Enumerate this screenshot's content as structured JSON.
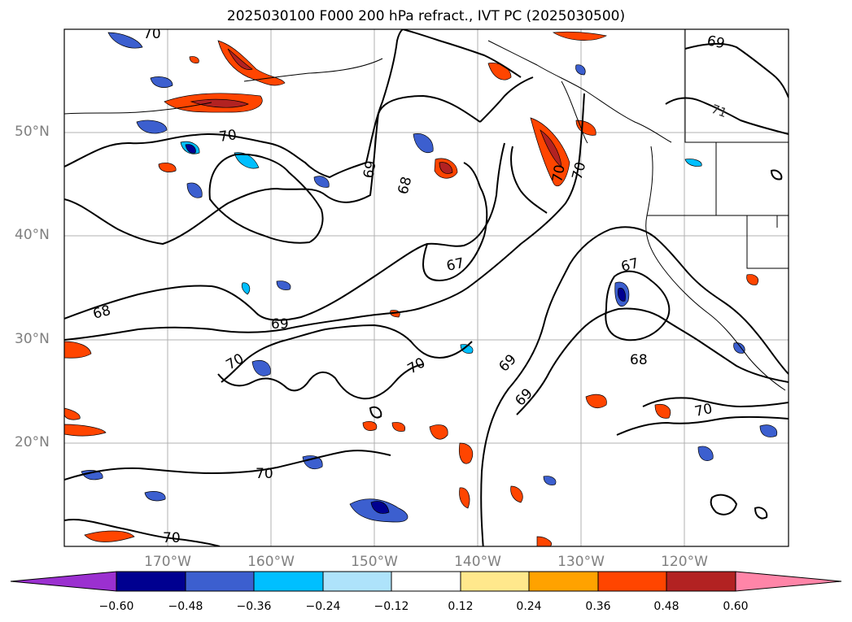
{
  "title": "2025030100 F000 200 hPa refract., IVT PC (2025030500)",
  "map": {
    "projection": "lat-lon",
    "lon_range": [
      -180,
      -110
    ],
    "lat_range": [
      10,
      60
    ],
    "grid": true,
    "lat_tick_labels": [
      "50°N",
      "40°N",
      "30°N",
      "20°N"
    ],
    "lon_tick_labels": [
      "170°W",
      "160°W",
      "150°W",
      "140°W",
      "130°W",
      "120°W"
    ],
    "contour_labels": [
      "70",
      "69",
      "70",
      "70",
      "69",
      "68",
      "67",
      "68",
      "69",
      "70",
      "70",
      "69",
      "69",
      "67",
      "68",
      "70",
      "70",
      "70",
      "70",
      "71"
    ]
  },
  "colorbar": {
    "tick_labels": [
      "−0.60",
      "−0.48",
      "−0.36",
      "−0.24",
      "−0.12",
      "0.12",
      "0.24",
      "0.36",
      "0.48",
      "0.60"
    ],
    "colors": [
      "#9b30d0",
      "#000090",
      "#3c5fcf",
      "#00bfff",
      "#aee3fb",
      "#ffffff",
      "#ffe88c",
      "#ffa200",
      "#ff4500",
      "#b22222",
      "#ff85a8"
    ]
  }
}
